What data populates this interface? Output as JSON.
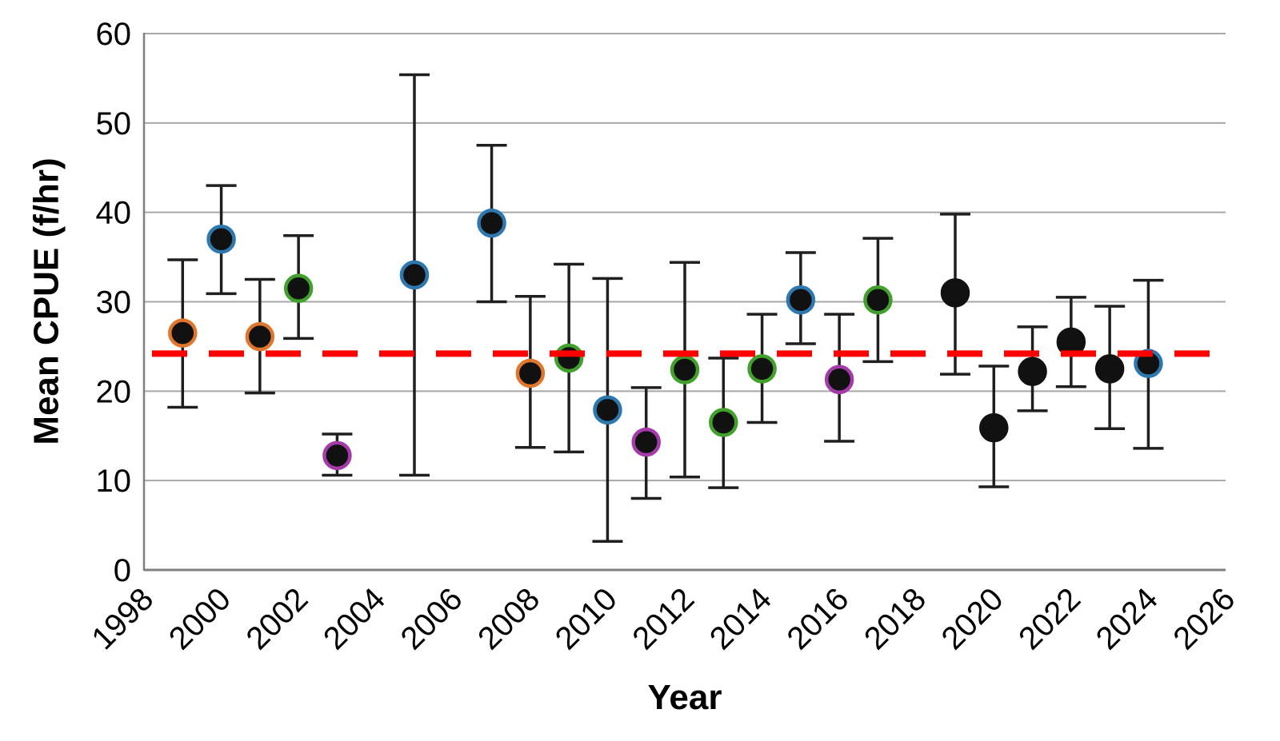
{
  "chart_data": {
    "type": "scatter",
    "title": "",
    "xlabel": "Year",
    "ylabel": "Mean CPUE (f/hr)",
    "x_tick_labels": [
      "1998",
      "2000",
      "2002",
      "2004",
      "2006",
      "2008",
      "2010",
      "2012",
      "2014",
      "2016",
      "2018",
      "2020",
      "2022",
      "2024",
      "2026"
    ],
    "y_tick_labels": [
      "0",
      "10",
      "20",
      "30",
      "40",
      "50",
      "60"
    ],
    "xlim": [
      1998,
      2026
    ],
    "ylim": [
      0,
      60
    ],
    "grid": "horizontal-only",
    "legend": "none",
    "grid_color": "#a8a8a8",
    "axis_color": "#808080",
    "marker_fill": "#111111",
    "error_bar_color": "#1f1f1f",
    "reference_line": {
      "value": 24.2,
      "color": "#ff0000",
      "style": "dashed"
    },
    "ring_colors": {
      "black": "#111111",
      "orange": "#e0762c",
      "blue": "#2e78b0",
      "green": "#42a12c",
      "purple": "#a43ba8"
    },
    "points": [
      {
        "year": 1999,
        "cpue": 26.5,
        "ci_low": 18.2,
        "ci_high": 34.7,
        "ring": "orange"
      },
      {
        "year": 2000,
        "cpue": 37.0,
        "ci_low": 30.9,
        "ci_high": 43.0,
        "ring": "blue"
      },
      {
        "year": 2001,
        "cpue": 26.1,
        "ci_low": 19.8,
        "ci_high": 32.5,
        "ring": "orange"
      },
      {
        "year": 2002,
        "cpue": 31.5,
        "ci_low": 25.9,
        "ci_high": 37.4,
        "ring": "green"
      },
      {
        "year": 2003,
        "cpue": 12.8,
        "ci_low": 10.6,
        "ci_high": 15.2,
        "ring": "purple"
      },
      {
        "year": 2005,
        "cpue": 33.0,
        "ci_low": 10.6,
        "ci_high": 55.4,
        "ring": "blue"
      },
      {
        "year": 2007,
        "cpue": 38.8,
        "ci_low": 30.0,
        "ci_high": 47.5,
        "ring": "blue"
      },
      {
        "year": 2008,
        "cpue": 22.0,
        "ci_low": 13.7,
        "ci_high": 30.6,
        "ring": "orange"
      },
      {
        "year": 2009,
        "cpue": 23.7,
        "ci_low": 13.2,
        "ci_high": 34.2,
        "ring": "green"
      },
      {
        "year": 2010,
        "cpue": 17.9,
        "ci_low": 3.2,
        "ci_high": 32.6,
        "ring": "blue"
      },
      {
        "year": 2011,
        "cpue": 14.3,
        "ci_low": 8.0,
        "ci_high": 20.4,
        "ring": "purple"
      },
      {
        "year": 2012,
        "cpue": 22.4,
        "ci_low": 10.4,
        "ci_high": 34.4,
        "ring": "green"
      },
      {
        "year": 2013,
        "cpue": 16.5,
        "ci_low": 9.2,
        "ci_high": 23.7,
        "ring": "green"
      },
      {
        "year": 2014,
        "cpue": 22.5,
        "ci_low": 16.5,
        "ci_high": 28.6,
        "ring": "green"
      },
      {
        "year": 2015,
        "cpue": 30.2,
        "ci_low": 25.3,
        "ci_high": 35.5,
        "ring": "blue"
      },
      {
        "year": 2016,
        "cpue": 21.3,
        "ci_low": 14.4,
        "ci_high": 28.6,
        "ring": "purple"
      },
      {
        "year": 2017,
        "cpue": 30.2,
        "ci_low": 23.3,
        "ci_high": 37.1,
        "ring": "green"
      },
      {
        "year": 2019,
        "cpue": 31.0,
        "ci_low": 21.9,
        "ci_high": 39.8,
        "ring": "black"
      },
      {
        "year": 2020,
        "cpue": 15.9,
        "ci_low": 9.3,
        "ci_high": 22.8,
        "ring": "black"
      },
      {
        "year": 2021,
        "cpue": 22.2,
        "ci_low": 17.8,
        "ci_high": 27.2,
        "ring": "black"
      },
      {
        "year": 2022,
        "cpue": 25.5,
        "ci_low": 20.5,
        "ci_high": 30.5,
        "ring": "black"
      },
      {
        "year": 2023,
        "cpue": 22.5,
        "ci_low": 15.8,
        "ci_high": 29.5,
        "ring": "black"
      },
      {
        "year": 2024,
        "cpue": 23.1,
        "ci_low": 13.6,
        "ci_high": 32.4,
        "ring": "blue"
      }
    ]
  }
}
